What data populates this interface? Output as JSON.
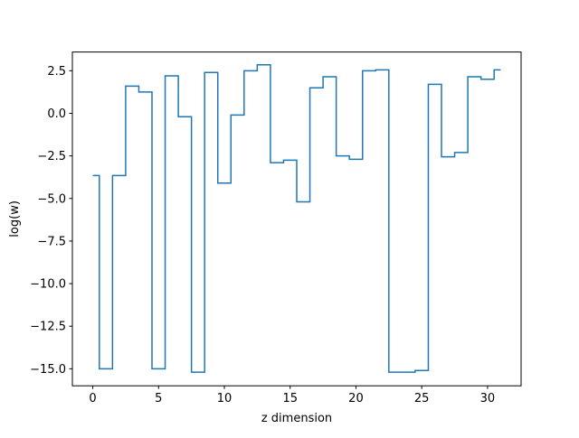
{
  "chart_data": {
    "type": "line",
    "drawstyle": "steps-mid",
    "title": "",
    "xlabel": "z dimension",
    "ylabel": "log(w)",
    "xlim": [
      -1.55,
      32.55
    ],
    "ylim": [
      -16.0,
      3.6
    ],
    "xticks": [
      0,
      5,
      10,
      15,
      20,
      25,
      30
    ],
    "xtick_labels": [
      "0",
      "5",
      "10",
      "15",
      "20",
      "25",
      "30"
    ],
    "yticks": [
      2.5,
      0.0,
      -2.5,
      -5.0,
      -7.5,
      -10.0,
      -12.5,
      -15.0
    ],
    "ytick_labels": [
      "2.5",
      "0.0",
      "−2.5",
      "−5.0",
      "−7.5",
      "−10.0",
      "−12.5",
      "−15.0"
    ],
    "grid": false,
    "line_color": "#1f77b4",
    "series": [
      {
        "x": [
          0,
          1,
          2,
          3,
          4,
          5,
          6,
          7,
          8,
          9,
          10,
          11,
          12,
          13,
          14,
          15,
          16,
          17,
          18,
          19,
          20,
          21,
          22,
          23,
          24,
          25,
          26,
          27,
          28,
          29,
          30,
          31
        ],
        "values": [
          -3.65,
          -15.0,
          -3.65,
          1.6,
          1.25,
          -15.0,
          2.2,
          -0.2,
          -15.2,
          2.4,
          -4.1,
          -0.1,
          2.5,
          2.85,
          -2.9,
          -2.75,
          -5.2,
          1.5,
          2.15,
          -2.5,
          -2.7,
          2.5,
          2.55,
          -15.2,
          -15.2,
          -15.1,
          1.7,
          -2.55,
          -2.3,
          2.15,
          2.0,
          2.55
        ]
      }
    ]
  }
}
